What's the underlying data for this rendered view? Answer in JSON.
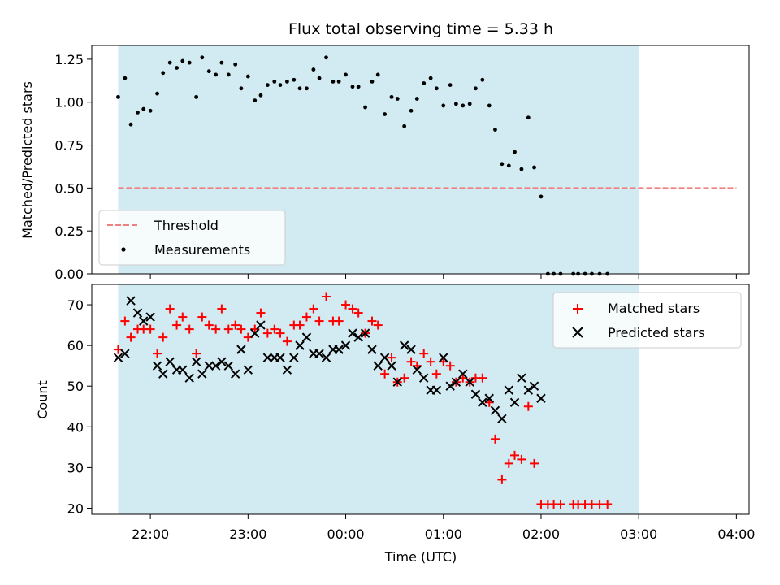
{
  "chart_data": {
    "type": "scatter",
    "title": "Flux total observing time = 5.33 h",
    "xlabel": "Time (UTC)",
    "x_tick_labels": [
      "22:00",
      "23:00",
      "00:00",
      "01:00",
      "02:00",
      "03:00",
      "04:00"
    ],
    "x_ticks_hours": [
      22,
      23,
      24,
      25,
      26,
      27,
      28
    ],
    "xlim_hours": [
      21.4,
      28.13
    ],
    "observing_window_hours": [
      21.67,
      27.0
    ],
    "colors": {
      "observing_window": "#add8e6",
      "threshold": "#f08080",
      "measurements": "#000000",
      "matched": "#ff0000",
      "predicted": "#000000"
    },
    "top_panel": {
      "ylabel": "Matched/Predicted stars",
      "ylim": [
        0,
        1.33
      ],
      "y_ticks": [
        0.0,
        0.25,
        0.5,
        0.75,
        1.0,
        1.25
      ],
      "y_tick_labels": [
        "0.00",
        "0.25",
        "0.50",
        "0.75",
        "1.00",
        "1.25"
      ],
      "legend": {
        "entries": [
          "Threshold",
          "Measurements"
        ],
        "location": "lower-left"
      },
      "threshold": {
        "value": 0.5,
        "x_range_hours": [
          21.67,
          28.0
        ]
      },
      "measurements": [
        [
          21.67,
          1.03
        ],
        [
          21.74,
          1.14
        ],
        [
          21.8,
          0.87
        ],
        [
          21.87,
          0.94
        ],
        [
          21.93,
          0.96
        ],
        [
          22.0,
          0.95
        ],
        [
          22.07,
          1.05
        ],
        [
          22.13,
          1.17
        ],
        [
          22.2,
          1.23
        ],
        [
          22.27,
          1.2
        ],
        [
          22.33,
          1.24
        ],
        [
          22.4,
          1.23
        ],
        [
          22.47,
          1.03
        ],
        [
          22.53,
          1.26
        ],
        [
          22.6,
          1.18
        ],
        [
          22.67,
          1.16
        ],
        [
          22.73,
          1.23
        ],
        [
          22.8,
          1.16
        ],
        [
          22.87,
          1.22
        ],
        [
          22.93,
          1.08
        ],
        [
          23.0,
          1.15
        ],
        [
          23.07,
          1.01
        ],
        [
          23.13,
          1.04
        ],
        [
          23.2,
          1.1
        ],
        [
          23.27,
          1.12
        ],
        [
          23.33,
          1.1
        ],
        [
          23.4,
          1.12
        ],
        [
          23.47,
          1.13
        ],
        [
          23.53,
          1.08
        ],
        [
          23.6,
          1.08
        ],
        [
          23.67,
          1.19
        ],
        [
          23.73,
          1.14
        ],
        [
          23.8,
          1.26
        ],
        [
          23.87,
          1.12
        ],
        [
          23.93,
          1.12
        ],
        [
          24.0,
          1.16
        ],
        [
          24.07,
          1.09
        ],
        [
          24.13,
          1.09
        ],
        [
          24.2,
          0.97
        ],
        [
          24.27,
          1.12
        ],
        [
          24.33,
          1.16
        ],
        [
          24.4,
          0.93
        ],
        [
          24.47,
          1.03
        ],
        [
          24.53,
          1.02
        ],
        [
          24.6,
          0.86
        ],
        [
          24.67,
          0.95
        ],
        [
          24.73,
          1.02
        ],
        [
          24.8,
          1.11
        ],
        [
          24.87,
          1.14
        ],
        [
          24.93,
          1.08
        ],
        [
          25.0,
          0.98
        ],
        [
          25.07,
          1.1
        ],
        [
          25.13,
          0.99
        ],
        [
          25.2,
          0.98
        ],
        [
          25.27,
          0.99
        ],
        [
          25.33,
          1.08
        ],
        [
          25.4,
          1.13
        ],
        [
          25.47,
          0.98
        ],
        [
          25.53,
          0.84
        ],
        [
          25.6,
          0.64
        ],
        [
          25.67,
          0.63
        ],
        [
          25.73,
          0.71
        ],
        [
          25.8,
          0.61
        ],
        [
          25.87,
          0.91
        ],
        [
          25.93,
          0.62
        ],
        [
          26.0,
          0.45
        ],
        [
          26.07,
          0.0
        ],
        [
          26.13,
          0.0
        ],
        [
          26.2,
          0.0
        ],
        [
          26.33,
          0.0
        ],
        [
          26.38,
          0.0
        ],
        [
          26.45,
          0.0
        ],
        [
          26.52,
          0.0
        ],
        [
          26.6,
          0.0
        ],
        [
          26.68,
          0.0
        ]
      ]
    },
    "bottom_panel": {
      "ylabel": "Count",
      "ylim": [
        18.5,
        75
      ],
      "y_ticks": [
        20,
        30,
        40,
        50,
        60,
        70
      ],
      "y_tick_labels": [
        "20",
        "30",
        "40",
        "50",
        "60",
        "70"
      ],
      "legend": {
        "entries": [
          "Matched stars",
          "Predicted stars"
        ],
        "location": "upper-right"
      },
      "series": [
        {
          "name": "Matched stars",
          "marker": "plus",
          "points": [
            [
              21.67,
              59
            ],
            [
              21.74,
              66
            ],
            [
              21.8,
              62
            ],
            [
              21.87,
              64
            ],
            [
              21.93,
              64
            ],
            [
              22.0,
              64
            ],
            [
              22.07,
              58
            ],
            [
              22.13,
              62
            ],
            [
              22.2,
              69
            ],
            [
              22.27,
              65
            ],
            [
              22.33,
              67
            ],
            [
              22.4,
              64
            ],
            [
              22.47,
              58
            ],
            [
              22.53,
              67
            ],
            [
              22.6,
              65
            ],
            [
              22.67,
              64
            ],
            [
              22.73,
              69
            ],
            [
              22.8,
              64
            ],
            [
              22.87,
              65
            ],
            [
              22.93,
              64
            ],
            [
              23.0,
              62
            ],
            [
              23.07,
              64
            ],
            [
              23.13,
              68
            ],
            [
              23.2,
              63
            ],
            [
              23.27,
              64
            ],
            [
              23.33,
              63
            ],
            [
              23.4,
              61
            ],
            [
              23.47,
              65
            ],
            [
              23.53,
              65
            ],
            [
              23.6,
              67
            ],
            [
              23.67,
              69
            ],
            [
              23.73,
              66
            ],
            [
              23.8,
              72
            ],
            [
              23.87,
              66
            ],
            [
              23.93,
              66
            ],
            [
              24.0,
              70
            ],
            [
              24.07,
              69
            ],
            [
              24.13,
              68
            ],
            [
              24.2,
              63
            ],
            [
              24.27,
              66
            ],
            [
              24.33,
              65
            ],
            [
              24.4,
              53
            ],
            [
              24.47,
              57
            ],
            [
              24.53,
              51
            ],
            [
              24.6,
              52
            ],
            [
              24.67,
              56
            ],
            [
              24.73,
              55
            ],
            [
              24.8,
              58
            ],
            [
              24.87,
              56
            ],
            [
              24.93,
              53
            ],
            [
              25.0,
              56
            ],
            [
              25.07,
              55
            ],
            [
              25.13,
              51
            ],
            [
              25.2,
              52
            ],
            [
              25.27,
              51
            ],
            [
              25.33,
              52
            ],
            [
              25.4,
              52
            ],
            [
              25.47,
              46
            ],
            [
              25.53,
              37
            ],
            [
              25.6,
              27
            ],
            [
              25.67,
              31
            ],
            [
              25.73,
              33
            ],
            [
              25.8,
              32
            ],
            [
              25.87,
              45
            ],
            [
              25.93,
              31
            ],
            [
              26.0,
              21
            ],
            [
              26.07,
              21
            ],
            [
              26.13,
              21
            ],
            [
              26.2,
              21
            ],
            [
              26.33,
              21
            ],
            [
              26.38,
              21
            ],
            [
              26.45,
              21
            ],
            [
              26.52,
              21
            ],
            [
              26.6,
              21
            ],
            [
              26.68,
              21
            ]
          ]
        },
        {
          "name": "Predicted stars",
          "marker": "x",
          "points": [
            [
              21.67,
              57
            ],
            [
              21.74,
              58
            ],
            [
              21.8,
              71
            ],
            [
              21.87,
              68
            ],
            [
              21.93,
              66
            ],
            [
              22.0,
              67
            ],
            [
              22.07,
              55
            ],
            [
              22.13,
              53
            ],
            [
              22.2,
              56
            ],
            [
              22.27,
              54
            ],
            [
              22.33,
              54
            ],
            [
              22.4,
              52
            ],
            [
              22.47,
              56
            ],
            [
              22.53,
              53
            ],
            [
              22.6,
              55
            ],
            [
              22.67,
              55
            ],
            [
              22.73,
              56
            ],
            [
              22.8,
              55
            ],
            [
              22.87,
              53
            ],
            [
              22.93,
              59
            ],
            [
              23.0,
              54
            ],
            [
              23.07,
              63
            ],
            [
              23.13,
              65
            ],
            [
              23.2,
              57
            ],
            [
              23.27,
              57
            ],
            [
              23.33,
              57
            ],
            [
              23.4,
              54
            ],
            [
              23.47,
              57
            ],
            [
              23.53,
              60
            ],
            [
              23.6,
              62
            ],
            [
              23.67,
              58
            ],
            [
              23.73,
              58
            ],
            [
              23.8,
              57
            ],
            [
              23.87,
              59
            ],
            [
              23.93,
              59
            ],
            [
              24.0,
              60
            ],
            [
              24.07,
              63
            ],
            [
              24.13,
              62
            ],
            [
              24.2,
              63
            ],
            [
              24.27,
              59
            ],
            [
              24.33,
              55
            ],
            [
              24.4,
              57
            ],
            [
              24.47,
              55
            ],
            [
              24.53,
              51
            ],
            [
              24.6,
              60
            ],
            [
              24.67,
              59
            ],
            [
              24.73,
              54
            ],
            [
              24.8,
              52
            ],
            [
              24.87,
              49
            ],
            [
              24.93,
              49
            ],
            [
              25.0,
              57
            ],
            [
              25.07,
              50
            ],
            [
              25.13,
              51
            ],
            [
              25.2,
              53
            ],
            [
              25.27,
              51
            ],
            [
              25.33,
              48
            ],
            [
              25.4,
              46
            ],
            [
              25.47,
              47
            ],
            [
              25.53,
              44
            ],
            [
              25.6,
              42
            ],
            [
              25.67,
              49
            ],
            [
              25.73,
              46
            ],
            [
              25.8,
              52
            ],
            [
              25.87,
              49
            ],
            [
              25.93,
              50
            ],
            [
              26.0,
              47
            ]
          ]
        }
      ]
    }
  }
}
